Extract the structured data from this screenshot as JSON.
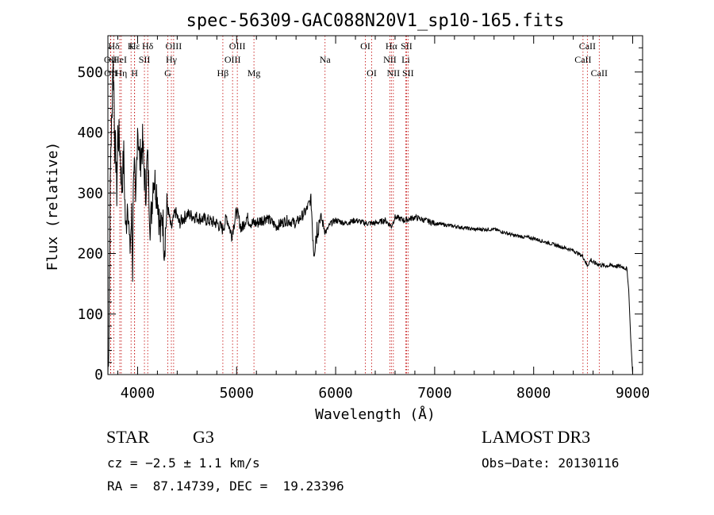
{
  "chart_data": {
    "type": "line",
    "title": "spec-56309-GAC088N20V1_sp10-165.fits",
    "xlabel": "Wavelength (Å)",
    "ylabel": "Flux (relative)",
    "xlim": [
      3700,
      9100
    ],
    "ylim": [
      0,
      560
    ],
    "x_ticks": [
      4000,
      5000,
      6000,
      7000,
      8000,
      9000
    ],
    "x_tick_labels": [
      "4000",
      "5000",
      "6000",
      "7000",
      "8000",
      "9000"
    ],
    "y_ticks": [
      0,
      100,
      200,
      300,
      400,
      500
    ],
    "y_tick_labels": [
      "0",
      "100",
      "200",
      "300",
      "400",
      "500"
    ],
    "series": [
      {
        "name": "flux",
        "x": [
          3700,
          3710,
          3720,
          3730,
          3740,
          3750,
          3760,
          3770,
          3780,
          3790,
          3800,
          3820,
          3840,
          3860,
          3880,
          3900,
          3920,
          3940,
          3950,
          3960,
          3970,
          3980,
          4000,
          4020,
          4050,
          4080,
          4100,
          4130,
          4160,
          4200,
          4230,
          4250,
          4270,
          4300,
          4340,
          4380,
          4420,
          4500,
          4600,
          4700,
          4800,
          4860,
          4900,
          4950,
          5000,
          5050,
          5100,
          5150,
          5200,
          5300,
          5400,
          5500,
          5600,
          5700,
          5750,
          5780,
          5800,
          5820,
          5850,
          5900,
          5950,
          6000,
          6100,
          6200,
          6300,
          6400,
          6500,
          6563,
          6600,
          6700,
          6800,
          6900,
          7000,
          7200,
          7400,
          7600,
          7800,
          8000,
          8200,
          8400,
          8500,
          8540,
          8580,
          8600,
          8700,
          8800,
          8900,
          8940,
          8960,
          8980,
          9000
        ],
        "y": [
          0,
          60,
          250,
          380,
          420,
          520,
          480,
          380,
          360,
          300,
          400,
          380,
          310,
          360,
          230,
          300,
          200,
          260,
          170,
          360,
          330,
          260,
          420,
          350,
          380,
          300,
          360,
          240,
          330,
          300,
          230,
          270,
          210,
          280,
          240,
          270,
          250,
          265,
          260,
          255,
          250,
          240,
          260,
          230,
          270,
          240,
          260,
          250,
          250,
          260,
          245,
          255,
          250,
          270,
          290,
          210,
          230,
          250,
          260,
          235,
          250,
          255,
          250,
          255,
          250,
          250,
          255,
          245,
          260,
          255,
          260,
          255,
          250,
          245,
          240,
          240,
          230,
          225,
          215,
          205,
          195,
          180,
          190,
          185,
          180,
          180,
          178,
          175,
          140,
          60,
          0
        ]
      }
    ],
    "line_markers": [
      {
        "label": "Hε",
        "x": 3970,
        "row": 1
      },
      {
        "label": "OII",
        "x": 3727,
        "row": 2
      },
      {
        "label": "OII",
        "x": 3729,
        "row": 3
      },
      {
        "label": "Hδ",
        "x": 3760,
        "row": 1
      },
      {
        "label": "HeI",
        "x": 3820,
        "row": 2
      },
      {
        "label": "Hη",
        "x": 3835,
        "row": 3
      },
      {
        "label": "K",
        "x": 3934,
        "row": 1
      },
      {
        "label": "SII",
        "x": 4069,
        "row": 2
      },
      {
        "label": "H",
        "x": 3969,
        "row": 3
      },
      {
        "label": "Hδ",
        "x": 4102,
        "row": 1
      },
      {
        "label": "OIII",
        "x": 4364,
        "row": 1
      },
      {
        "label": "Hγ",
        "x": 4341,
        "row": 2
      },
      {
        "label": "G",
        "x": 4305,
        "row": 3
      },
      {
        "label": "OIII",
        "x": 5007,
        "row": 1
      },
      {
        "label": "OIII",
        "x": 4959,
        "row": 2
      },
      {
        "label": "Hβ",
        "x": 4861,
        "row": 3
      },
      {
        "label": "Mg",
        "x": 5175,
        "row": 3
      },
      {
        "label": "Na",
        "x": 5893,
        "row": 2
      },
      {
        "label": "OI",
        "x": 6300,
        "row": 1
      },
      {
        "label": "OI",
        "x": 6364,
        "row": 3
      },
      {
        "label": "Hα",
        "x": 6563,
        "row": 1
      },
      {
        "label": "SII",
        "x": 6716,
        "row": 1
      },
      {
        "label": "NII",
        "x": 6548,
        "row": 2
      },
      {
        "label": "Li",
        "x": 6708,
        "row": 2
      },
      {
        "label": "NII",
        "x": 6583,
        "row": 3
      },
      {
        "label": "SII",
        "x": 6731,
        "row": 3
      },
      {
        "label": "CaII",
        "x": 8542,
        "row": 1
      },
      {
        "label": "CaII",
        "x": 8498,
        "row": 2
      },
      {
        "label": "CaII",
        "x": 8662,
        "row": 3
      }
    ]
  },
  "info": {
    "class": "STAR",
    "subclass": "G3",
    "cz": "cz = −2.5 ± 1.1 km/s",
    "coords": "RA =  87.14739, DEC =  19.23396",
    "survey": "LAMOST DR3",
    "obsdate": "Obs−Date: 20130116"
  }
}
